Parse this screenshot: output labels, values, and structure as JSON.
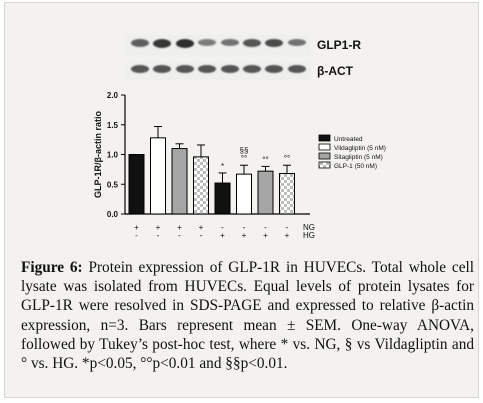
{
  "blot": {
    "bands": [
      {
        "label": "GLP1-R",
        "intensities": [
          0.7,
          0.9,
          0.95,
          0.55,
          0.6,
          0.75,
          0.8,
          0.6
        ]
      },
      {
        "label": "β-ACT",
        "intensities": [
          0.75,
          0.75,
          0.75,
          0.75,
          0.75,
          0.75,
          0.75,
          0.75
        ]
      }
    ]
  },
  "chart_data": {
    "type": "bar",
    "title": "",
    "ylabel": "GLP-1R/β-actin ratio",
    "xlabel": "",
    "ylim": [
      0,
      2.0
    ],
    "yticks": [
      "0.0",
      "0.5",
      "1.0",
      "1.5",
      "2.0"
    ],
    "bars": [
      {
        "value": 1.0,
        "error": 0.0,
        "series": "Untreated",
        "annotation": ""
      },
      {
        "value": 1.28,
        "error": 0.19,
        "series": "Vildagliptin (5 nM)",
        "annotation": ""
      },
      {
        "value": 1.1,
        "error": 0.08,
        "series": "Sitagliptin (5 nM)",
        "annotation": ""
      },
      {
        "value": 0.96,
        "error": 0.2,
        "series": "GLP-1 (50 nM)",
        "annotation": ""
      },
      {
        "value": 0.52,
        "error": 0.17,
        "series": "Untreated",
        "annotation": "*"
      },
      {
        "value": 0.67,
        "error": 0.15,
        "series": "Vildagliptin (5 nM)",
        "annotation": "§§\n°°"
      },
      {
        "value": 0.72,
        "error": 0.08,
        "series": "Sitagliptin (5 nM)",
        "annotation": "°°"
      },
      {
        "value": 0.68,
        "error": 0.14,
        "series": "GLP-1 (50 nM)",
        "annotation": "°°"
      }
    ],
    "legend": {
      "position": "right",
      "entries": [
        {
          "label": "Untreated",
          "fill": "black"
        },
        {
          "label": "Vildagliptin (5 nM)",
          "fill": "white"
        },
        {
          "label": "Sitagliptin (5 nM)",
          "fill": "gray"
        },
        {
          "label": "GLP-1 (50 nM)",
          "fill": "checker"
        }
      ]
    },
    "condition_rows": [
      {
        "label": "NG",
        "signs": [
          "+",
          "+",
          "+",
          "+",
          "-",
          "-",
          "-",
          "-"
        ]
      },
      {
        "label": "HG",
        "signs": [
          "-",
          "-",
          "-",
          "-",
          "+",
          "+",
          "+",
          "+"
        ]
      }
    ],
    "colors": {
      "untreated": "#111111",
      "vildagliptin": "#ffffff",
      "sitagliptin": "#a6a6a6",
      "glp1_checker": "#bdbdbd"
    }
  },
  "caption": {
    "label": "Figure 6:",
    "text": "Protein expression of GLP-1R in HUVECs. Total whole cell lysate was isolated from HUVECs. Equal levels of protein lysates for GLP-1R were resolved in SDS-PAGE and expressed to relative β-actin expression, n=3. Bars represent mean ± SEM. One-way ANOVA, followed by Tukey’s post-hoc test, where * vs. NG, § vs Vildagliptin and ° vs. HG. *p<0.05, °°p<0.01 and §§p<0.01."
  }
}
